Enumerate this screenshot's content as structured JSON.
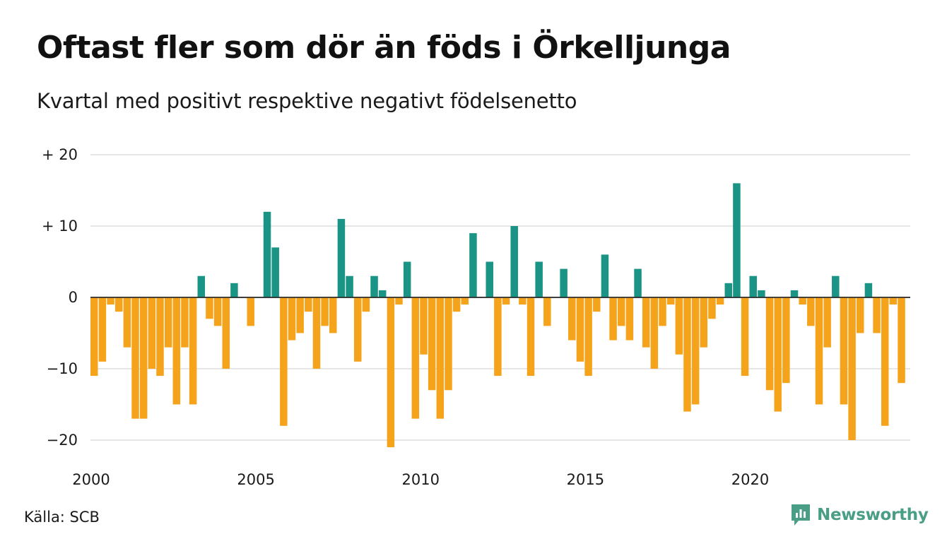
{
  "title": "Oftast fler som dör än föds i Örkelljunga",
  "subtitle": "Kvartal med positivt respektive negativt födelsenetto",
  "source": "Källa: SCB",
  "brand": {
    "name": "Newsworthy",
    "icon": "newsworthy-logo-icon",
    "color": "#4a9e86"
  },
  "chart_data": {
    "type": "bar",
    "title": "Oftast fler som dör än föds i Örkelljunga",
    "subtitle": "Kvartal med positivt respektive negativt födelsenetto",
    "xlabel": "",
    "ylabel": "",
    "x_start": 2000,
    "x_step": 0.25,
    "xticks": [
      2000,
      2005,
      2010,
      2015,
      2020
    ],
    "xtick_labels": [
      "2000",
      "2005",
      "2010",
      "2015",
      "2020"
    ],
    "yticks": [
      20,
      10,
      0,
      -10,
      -20
    ],
    "ytick_labels": [
      "+ 20",
      "+ 10",
      "0",
      "−10",
      "−20"
    ],
    "ylim": [
      -22,
      20
    ],
    "grid": true,
    "colors": {
      "positive": "#1a9485",
      "negative": "#f5a31b"
    },
    "values": [
      -11,
      -9,
      -1,
      -2,
      -7,
      -17,
      -17,
      -10,
      -11,
      -7,
      -15,
      -7,
      -15,
      3,
      -3,
      -4,
      -10,
      2,
      0,
      -4,
      0,
      12,
      7,
      -18,
      -6,
      -5,
      -2,
      -10,
      -4,
      -5,
      11,
      3,
      -9,
      -2,
      3,
      1,
      -21,
      -1,
      5,
      -17,
      -8,
      -13,
      -17,
      -13,
      -2,
      -1,
      9,
      0,
      5,
      -11,
      -1,
      10,
      -1,
      -11,
      5,
      -4,
      0,
      4,
      -6,
      -9,
      -11,
      -2,
      6,
      -6,
      -4,
      -6,
      4,
      -7,
      -10,
      -4,
      -1,
      -8,
      -16,
      -15,
      -7,
      -3,
      -1,
      2,
      16,
      -11,
      3,
      1,
      -13,
      -16,
      -12,
      1,
      -1,
      -4,
      -15,
      -7,
      3,
      -15,
      -20,
      -5,
      2,
      -5,
      -18,
      -1,
      -12
    ]
  }
}
